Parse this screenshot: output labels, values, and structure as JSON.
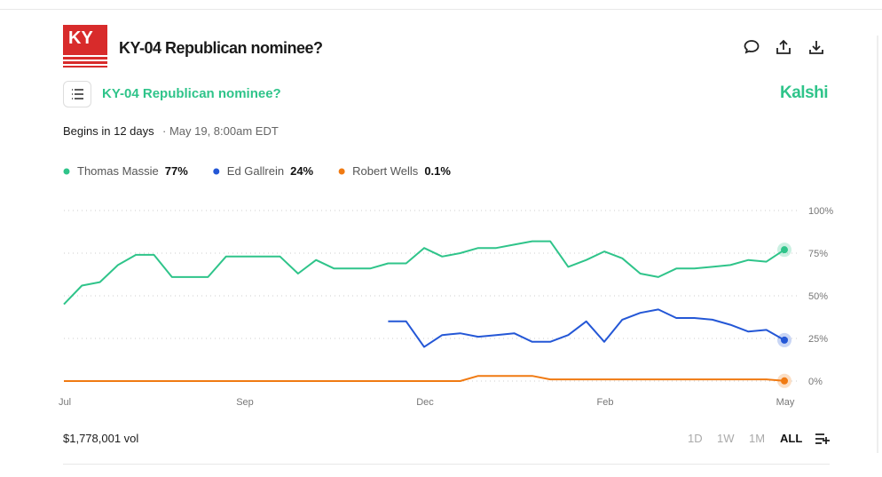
{
  "header": {
    "logo": "KY",
    "title": "KY-04 Republican nominee?",
    "brand": "Kalshi",
    "begins": "Begins in 12 days",
    "start_time": "· May 19, 8:00am EDT"
  },
  "footer": {
    "volume": "$1,778,001 vol",
    "ranges": [
      "1D",
      "1W",
      "1M",
      "ALL"
    ]
  },
  "chart_data": {
    "type": "line",
    "title": "KY-04 Republican nominee?",
    "categories": [
      "Jul",
      null,
      null,
      null,
      null,
      null,
      null,
      null,
      null,
      null,
      "Sep",
      null,
      null,
      null,
      null,
      null,
      null,
      null,
      null,
      null,
      "Dec",
      null,
      null,
      null,
      null,
      null,
      null,
      null,
      null,
      null,
      "Feb",
      null,
      null,
      null,
      null,
      null,
      null,
      null,
      null,
      null,
      "May"
    ],
    "series": [
      {
        "name": "Thomas Massie",
        "color": "#2fc48a",
        "legend_value": "77%",
        "values": [
          45,
          56,
          58,
          68,
          74,
          74,
          61,
          61,
          61,
          73,
          73,
          73,
          73,
          63,
          71,
          66,
          66,
          66,
          69,
          69,
          78,
          73,
          75,
          78,
          78,
          80,
          82,
          82,
          67,
          71,
          76,
          72,
          63,
          61,
          66,
          66,
          67,
          68,
          71,
          70,
          77
        ]
      },
      {
        "name": "Ed Gallrein",
        "color": "#2457d6",
        "legend_value": "24%",
        "values": [
          null,
          null,
          null,
          null,
          null,
          null,
          null,
          null,
          null,
          null,
          null,
          null,
          null,
          null,
          null,
          null,
          null,
          null,
          35,
          35,
          20,
          27,
          28,
          26,
          27,
          28,
          23,
          23,
          27,
          35,
          23,
          36,
          40,
          42,
          37,
          37,
          36,
          33,
          29,
          30,
          24
        ]
      },
      {
        "name": "Robert Wells",
        "color": "#f07a12",
        "legend_value": "0.1%",
        "values": [
          0,
          0,
          0,
          0,
          0,
          0,
          0,
          0,
          0,
          0,
          0,
          0,
          0,
          0,
          0,
          0,
          0,
          0,
          0,
          0,
          0,
          0,
          0,
          3,
          3,
          3,
          3,
          1,
          1,
          1,
          1,
          1,
          1,
          1,
          1,
          1,
          1,
          1,
          1,
          1,
          0.1
        ]
      }
    ],
    "ylim": [
      0,
      100
    ],
    "yticks": [
      {
        "value": 0,
        "label": "0%"
      },
      {
        "value": 25,
        "label": "25%"
      },
      {
        "value": 50,
        "label": "50%"
      },
      {
        "value": 75,
        "label": "75%"
      },
      {
        "value": 100,
        "label": "100%"
      }
    ],
    "grid": true
  }
}
